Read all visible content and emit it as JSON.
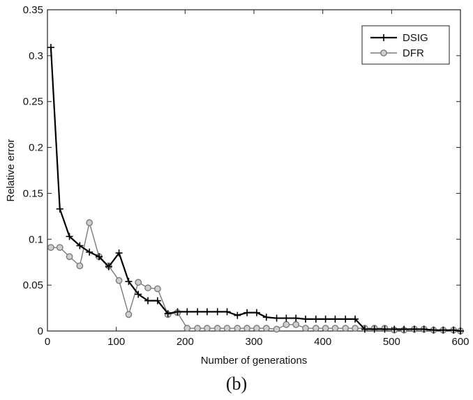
{
  "caption": "(b)",
  "chart_data": {
    "type": "line",
    "title": "",
    "xlabel": "Number of generations",
    "ylabel": "Relative error",
    "xlim": [
      0,
      600
    ],
    "ylim": [
      0,
      0.35
    ],
    "xticks": [
      0,
      100,
      200,
      300,
      400,
      500,
      600
    ],
    "yticks": [
      0,
      0.05,
      0.1,
      0.15,
      0.2,
      0.25,
      0.3,
      0.35
    ],
    "ytick_labels": [
      "0",
      "0.05",
      "0.1",
      "0.15",
      "0.2",
      "0.25",
      "0.3",
      "0.35"
    ],
    "grid": false,
    "legend_position": "top-right",
    "series": [
      {
        "name": "DSIG",
        "color": "#000000",
        "marker": "plus",
        "x": [
          5,
          18,
          32,
          47,
          61,
          75,
          89,
          104,
          118,
          132,
          146,
          160,
          175,
          189,
          203,
          218,
          232,
          247,
          261,
          276,
          290,
          304,
          318,
          333,
          347,
          361,
          375,
          390,
          404,
          418,
          433,
          447,
          461,
          475,
          490,
          504,
          518,
          533,
          547,
          561,
          575,
          590,
          600
        ],
        "y": [
          0.309,
          0.133,
          0.103,
          0.093,
          0.086,
          0.081,
          0.07,
          0.085,
          0.054,
          0.04,
          0.033,
          0.033,
          0.019,
          0.021,
          0.021,
          0.021,
          0.021,
          0.021,
          0.021,
          0.017,
          0.02,
          0.02,
          0.015,
          0.014,
          0.014,
          0.014,
          0.013,
          0.013,
          0.013,
          0.013,
          0.013,
          0.013,
          0.002,
          0.002,
          0.002,
          0.002,
          0.002,
          0.002,
          0.002,
          0.001,
          0.001,
          0.001,
          0.0
        ]
      },
      {
        "name": "DFR",
        "color": "#7a7a7a",
        "marker": "circle",
        "x": [
          5,
          18,
          32,
          47,
          61,
          75,
          89,
          104,
          118,
          132,
          146,
          160,
          175,
          189,
          203,
          218,
          232,
          247,
          261,
          276,
          290,
          304,
          318,
          333,
          347,
          361,
          375,
          390,
          404,
          418,
          433,
          447,
          461,
          475,
          490,
          504,
          518,
          533,
          547,
          561,
          575,
          590,
          600
        ],
        "y": [
          0.091,
          0.091,
          0.081,
          0.071,
          0.118,
          0.081,
          0.071,
          0.055,
          0.018,
          0.053,
          0.047,
          0.046,
          0.018,
          0.02,
          0.003,
          0.003,
          0.003,
          0.003,
          0.003,
          0.003,
          0.003,
          0.003,
          0.003,
          0.002,
          0.007,
          0.007,
          0.003,
          0.003,
          0.003,
          0.003,
          0.003,
          0.003,
          0.003,
          0.003,
          0.003,
          0.001,
          0.001,
          0.002,
          0.002,
          0.001,
          0.001,
          0.001,
          0.0
        ]
      }
    ]
  }
}
